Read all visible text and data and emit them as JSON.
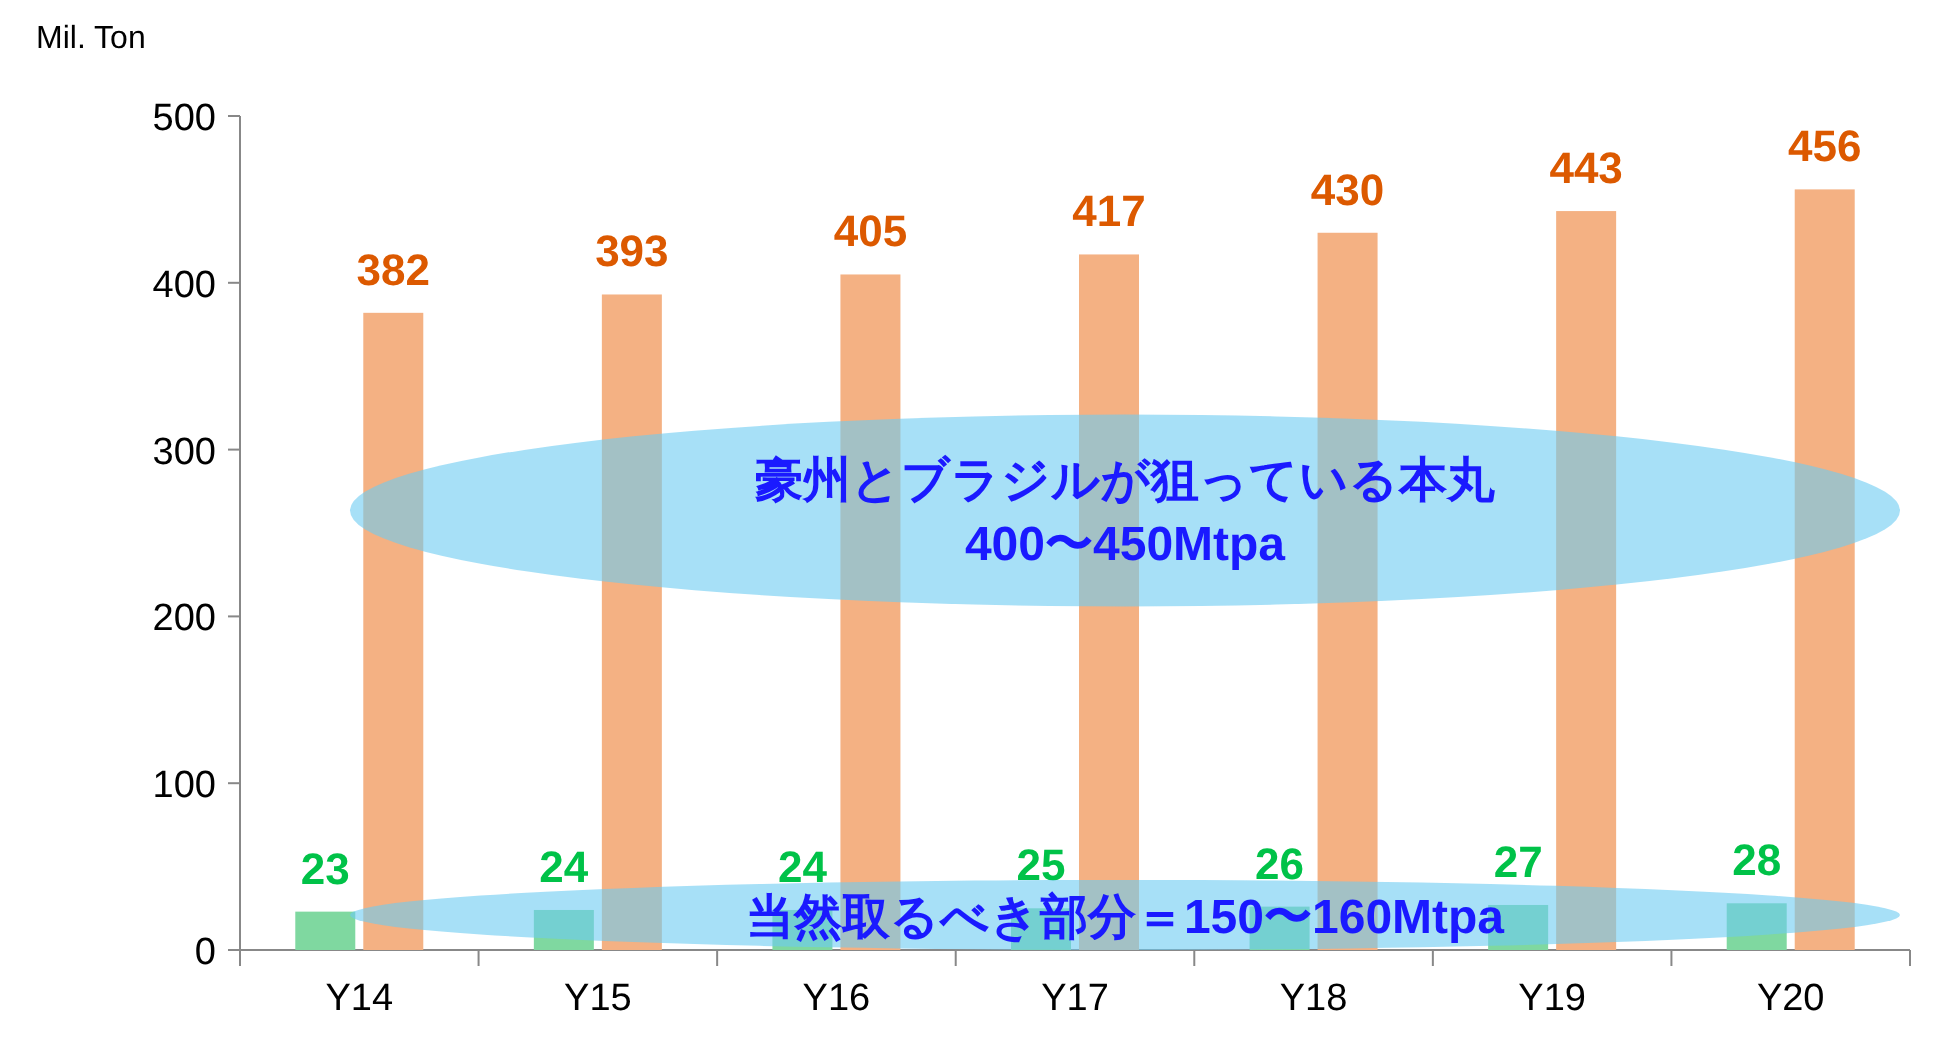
{
  "chart_data": {
    "type": "bar",
    "ylabel": "Mil. Ton",
    "categories": [
      "Y14",
      "Y15",
      "Y16",
      "Y17",
      "Y18",
      "Y19",
      "Y20"
    ],
    "series": [
      {
        "color": "#7fd8a0",
        "values": [
          23,
          24,
          24,
          25,
          26,
          27,
          28
        ]
      },
      {
        "color": "#f4b183",
        "values": [
          382,
          393,
          405,
          417,
          430,
          443,
          456
        ]
      }
    ],
    "ylim": [
      0,
      500
    ],
    "yticks": [
      0,
      100,
      200,
      300,
      400,
      500
    ],
    "data_labels": true,
    "bands": [
      {
        "axis": "y",
        "from": 206,
        "to": 321,
        "label": "豪州とブラジルが狙っている本丸\n400〜450Mtpa",
        "color": "#6ccbf2"
      },
      {
        "axis": "y",
        "from": 0,
        "to": 42,
        "label": "当然取るべき部分＝150〜160Mtpa",
        "color": "#6ccbf2"
      }
    ]
  }
}
